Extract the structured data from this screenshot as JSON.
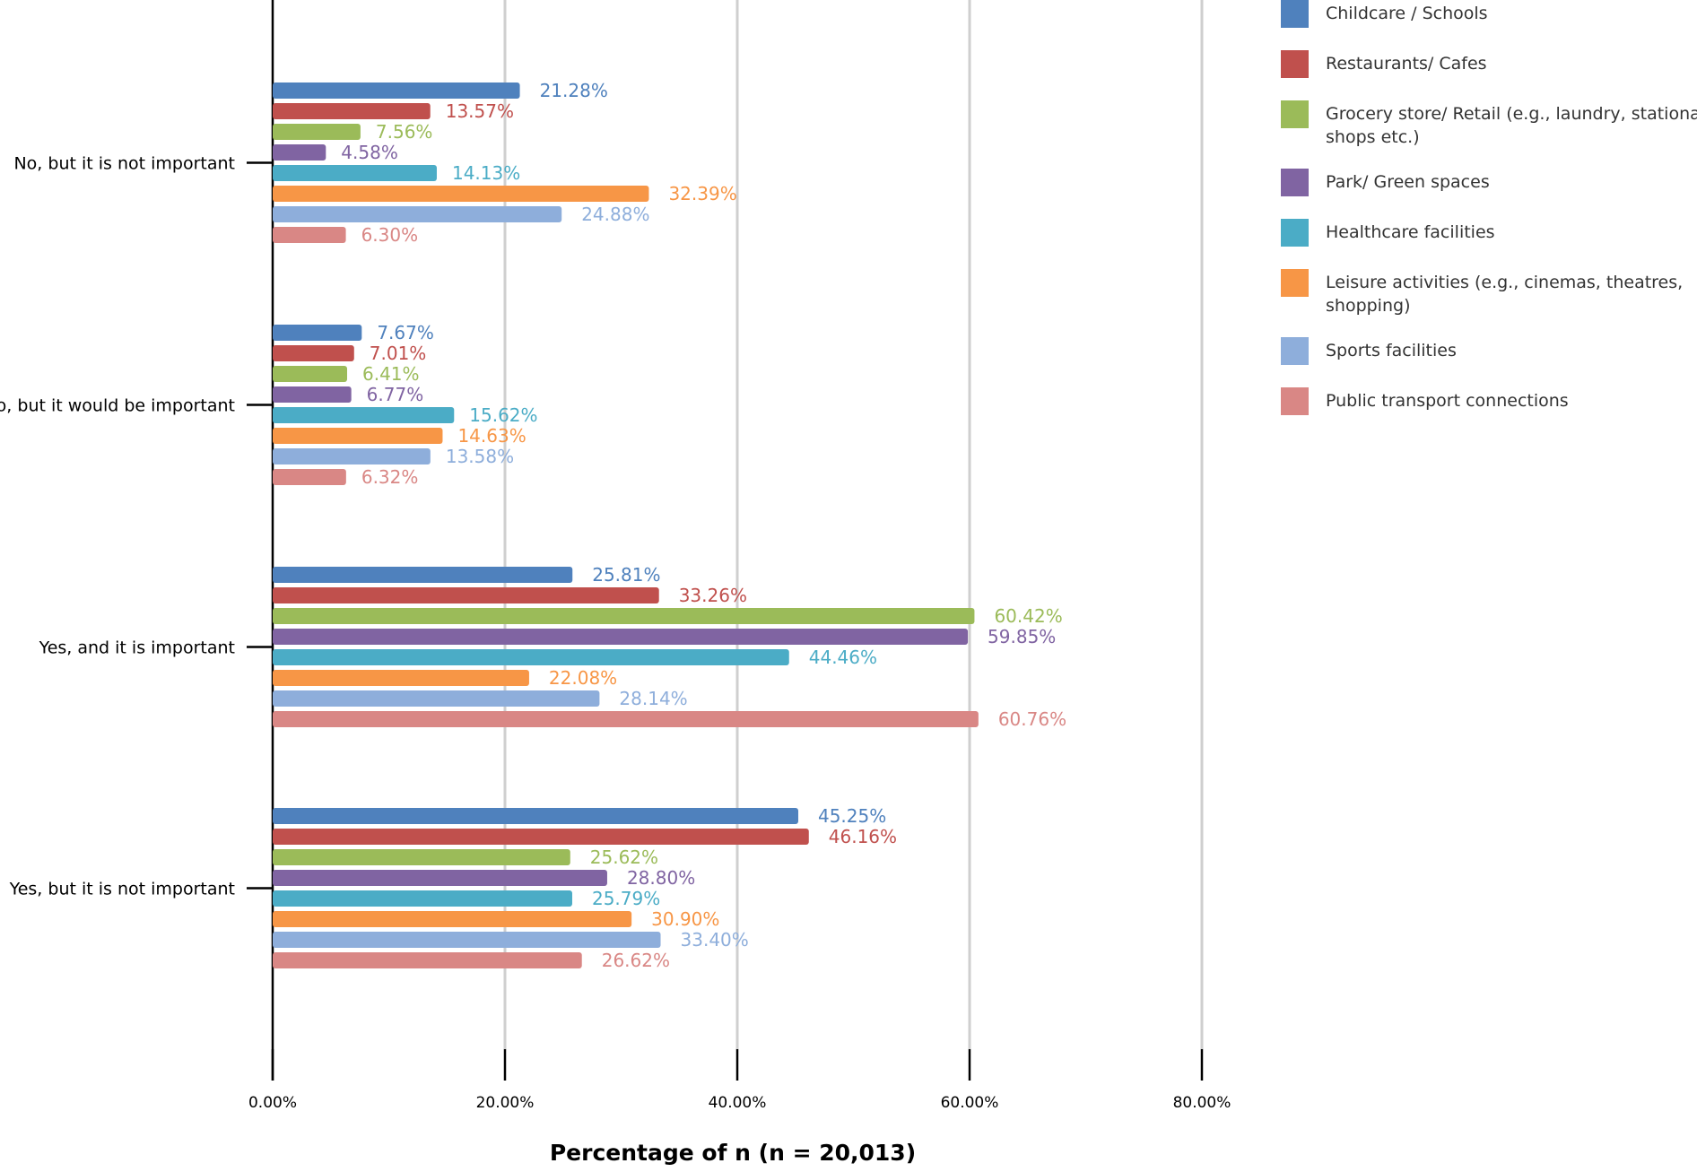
{
  "chart_data": {
    "type": "bar",
    "orientation": "horizontal",
    "title": "",
    "xlabel": "Percentage of n (n = 20,013)",
    "ylabel": "",
    "xlim": [
      0,
      80
    ],
    "grid": true,
    "legend_position": "right",
    "x_ticks": [
      "0.00%",
      "20.00%",
      "40.00%",
      "60.00%",
      "80.00%"
    ],
    "categories": [
      "No, but it is not important",
      "No, but it would be important",
      "Yes, and it is important",
      "Yes, but it is not important"
    ],
    "series": [
      {
        "name": "Childcare / Schools",
        "color": "#4f81bd",
        "values": [
          21.28,
          7.67,
          25.81,
          45.25
        ],
        "labels": [
          "21.28%",
          "7.67%",
          "25.81%",
          "45.25%"
        ]
      },
      {
        "name": "Restaurants/ Cafes",
        "color": "#c0504d",
        "values": [
          13.57,
          7.01,
          33.26,
          46.16
        ],
        "labels": [
          "13.57%",
          "7.01%",
          "33.26%",
          "46.16%"
        ]
      },
      {
        "name": "Grocery store/ Retail (e.g., laundry, stationary shops etc.)",
        "color": "#9bbb59",
        "legend_lines": [
          "Grocery store/ Retail (e.g., laundry, stationary",
          "shops etc.)"
        ],
        "values": [
          7.56,
          6.41,
          60.42,
          25.62
        ],
        "labels": [
          "7.56%",
          "6.41%",
          "60.42%",
          "25.62%"
        ]
      },
      {
        "name": "Park/ Green spaces",
        "color": "#8064a2",
        "values": [
          4.58,
          6.77,
          59.85,
          28.8
        ],
        "labels": [
          "4.58%",
          "6.77%",
          "59.85%",
          "28.80%"
        ]
      },
      {
        "name": "Healthcare facilities",
        "color": "#4bacc6",
        "values": [
          14.13,
          15.62,
          44.46,
          25.79
        ],
        "labels": [
          "14.13%",
          "15.62%",
          "44.46%",
          "25.79%"
        ]
      },
      {
        "name": "Leisure activities (e.g., cinemas, theatres, shopping)",
        "color": "#f79646",
        "legend_lines": [
          "Leisure activities (e.g., cinemas, theatres,",
          "shopping)"
        ],
        "values": [
          32.39,
          14.63,
          22.08,
          30.9
        ],
        "labels": [
          "32.39%",
          "14.63%",
          "22.08%",
          "30.90%"
        ]
      },
      {
        "name": "Sports facilities",
        "color": "#8eaedb",
        "values": [
          24.88,
          13.58,
          28.14,
          33.4
        ],
        "labels": [
          "24.88%",
          "13.58%",
          "28.14%",
          "33.40%"
        ]
      },
      {
        "name": "Public transport connections",
        "color": "#d98785",
        "values": [
          6.3,
          6.32,
          60.76,
          26.62
        ],
        "labels": [
          "6.30%",
          "6.32%",
          "60.76%",
          "26.62%"
        ]
      }
    ]
  }
}
